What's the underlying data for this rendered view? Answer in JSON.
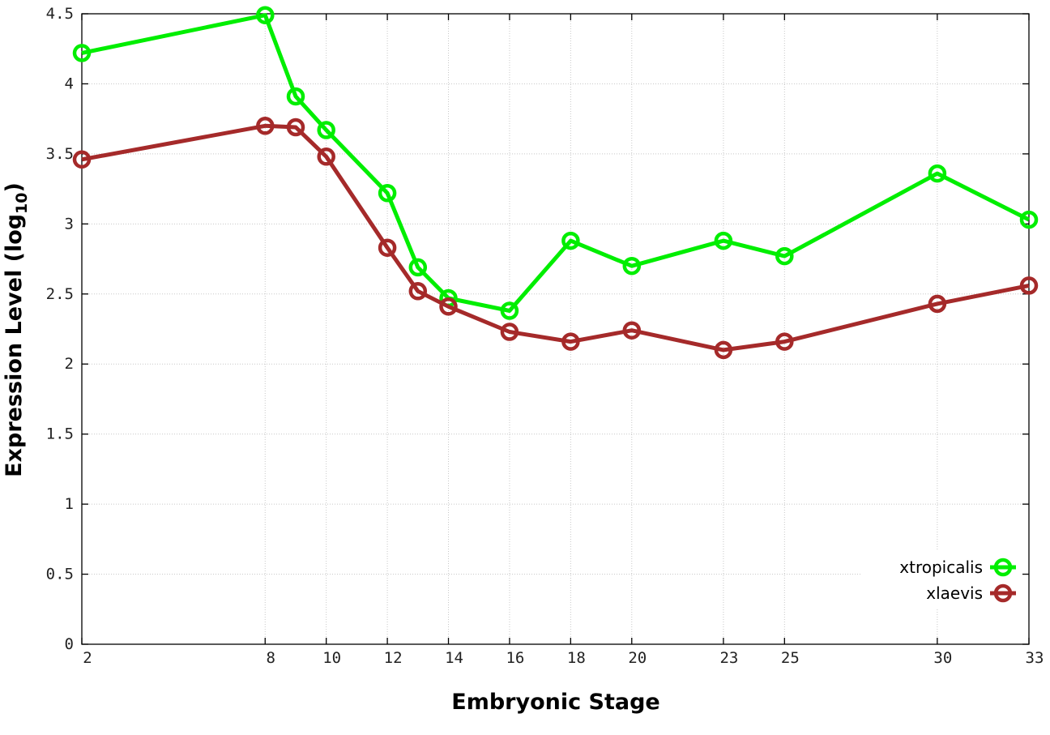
{
  "chart_data": {
    "type": "line",
    "title": "",
    "xlabel": "Embryonic Stage",
    "ylabel_main": "Expression Level (log",
    "ylabel_sub": "10",
    "ylabel_close": ")",
    "xlim": [
      2,
      33
    ],
    "ylim": [
      0,
      4.5
    ],
    "x_ticks": [
      2,
      8,
      10,
      12,
      14,
      16,
      18,
      20,
      23,
      25,
      30,
      33
    ],
    "y_ticks": [
      0,
      0.5,
      1,
      1.5,
      2,
      2.5,
      3,
      3.5,
      4,
      4.5
    ],
    "y_tick_labels": [
      "0",
      "0.5",
      "1",
      "1.5",
      "2",
      "2.5",
      "3",
      "3.5",
      "4",
      "4.5"
    ],
    "grid": true,
    "legend_position": "bottom-right",
    "series": [
      {
        "name": "xtropicalis",
        "color": "#00ee00",
        "x": [
          2,
          8,
          9,
          10,
          12,
          13,
          14,
          16,
          18,
          20,
          23,
          25,
          30,
          33
        ],
        "values": [
          4.22,
          4.49,
          3.91,
          3.67,
          3.22,
          2.69,
          2.47,
          2.38,
          2.88,
          2.7,
          2.88,
          2.77,
          3.36,
          3.03
        ]
      },
      {
        "name": "xlaevis",
        "color": "#a52a2a",
        "x": [
          2,
          8,
          9,
          10,
          12,
          13,
          14,
          16,
          18,
          20,
          23,
          25,
          30,
          33
        ],
        "values": [
          3.46,
          3.7,
          3.69,
          3.48,
          2.83,
          2.52,
          2.41,
          2.23,
          2.16,
          2.24,
          2.1,
          2.16,
          2.43,
          2.56
        ]
      }
    ]
  }
}
